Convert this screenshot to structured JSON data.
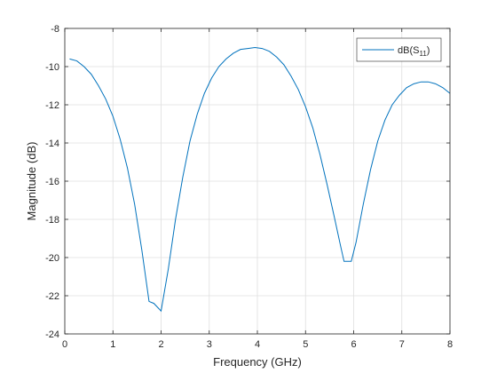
{
  "chart_data": {
    "type": "line",
    "title": "",
    "xlabel": "Frequency (GHz)",
    "ylabel": "Magnitude (dB)",
    "xlim": [
      0,
      8
    ],
    "ylim": [
      -24,
      -8
    ],
    "xticks": [
      0,
      1,
      2,
      3,
      4,
      5,
      6,
      7,
      8
    ],
    "yticks": [
      -24,
      -22,
      -20,
      -18,
      -16,
      -14,
      -12,
      -10,
      -8
    ],
    "grid": true,
    "legend_position": "top-right",
    "series": [
      {
        "name": "dB(S11)",
        "legend_base": "dB(S",
        "legend_sub": "11",
        "legend_tail": ")",
        "color": "#0072BD",
        "x": [
          0.1,
          0.25,
          0.4,
          0.55,
          0.7,
          0.85,
          1.0,
          1.15,
          1.3,
          1.45,
          1.6,
          1.75,
          1.85,
          2.0,
          2.15,
          2.3,
          2.45,
          2.6,
          2.75,
          2.9,
          3.05,
          3.2,
          3.35,
          3.5,
          3.65,
          3.8,
          3.95,
          4.1,
          4.25,
          4.4,
          4.55,
          4.7,
          4.85,
          5.0,
          5.15,
          5.3,
          5.45,
          5.6,
          5.72,
          5.8,
          5.95,
          6.05,
          6.2,
          6.35,
          6.5,
          6.65,
          6.8,
          6.95,
          7.1,
          7.25,
          7.4,
          7.55,
          7.7,
          7.85,
          8.0
        ],
        "y": [
          -9.6,
          -9.7,
          -10.0,
          -10.4,
          -11.0,
          -11.7,
          -12.6,
          -13.8,
          -15.3,
          -17.2,
          -19.6,
          -22.3,
          -22.4,
          -22.8,
          -20.6,
          -18.0,
          -15.8,
          -13.9,
          -12.5,
          -11.4,
          -10.6,
          -10.0,
          -9.6,
          -9.3,
          -9.1,
          -9.05,
          -9.0,
          -9.05,
          -9.2,
          -9.5,
          -9.9,
          -10.5,
          -11.2,
          -12.1,
          -13.2,
          -14.6,
          -16.2,
          -17.9,
          -19.3,
          -20.2,
          -20.2,
          -19.2,
          -17.2,
          -15.4,
          -13.9,
          -12.8,
          -12.0,
          -11.5,
          -11.1,
          -10.9,
          -10.8,
          -10.8,
          -10.9,
          -11.1,
          -11.4
        ]
      }
    ]
  }
}
